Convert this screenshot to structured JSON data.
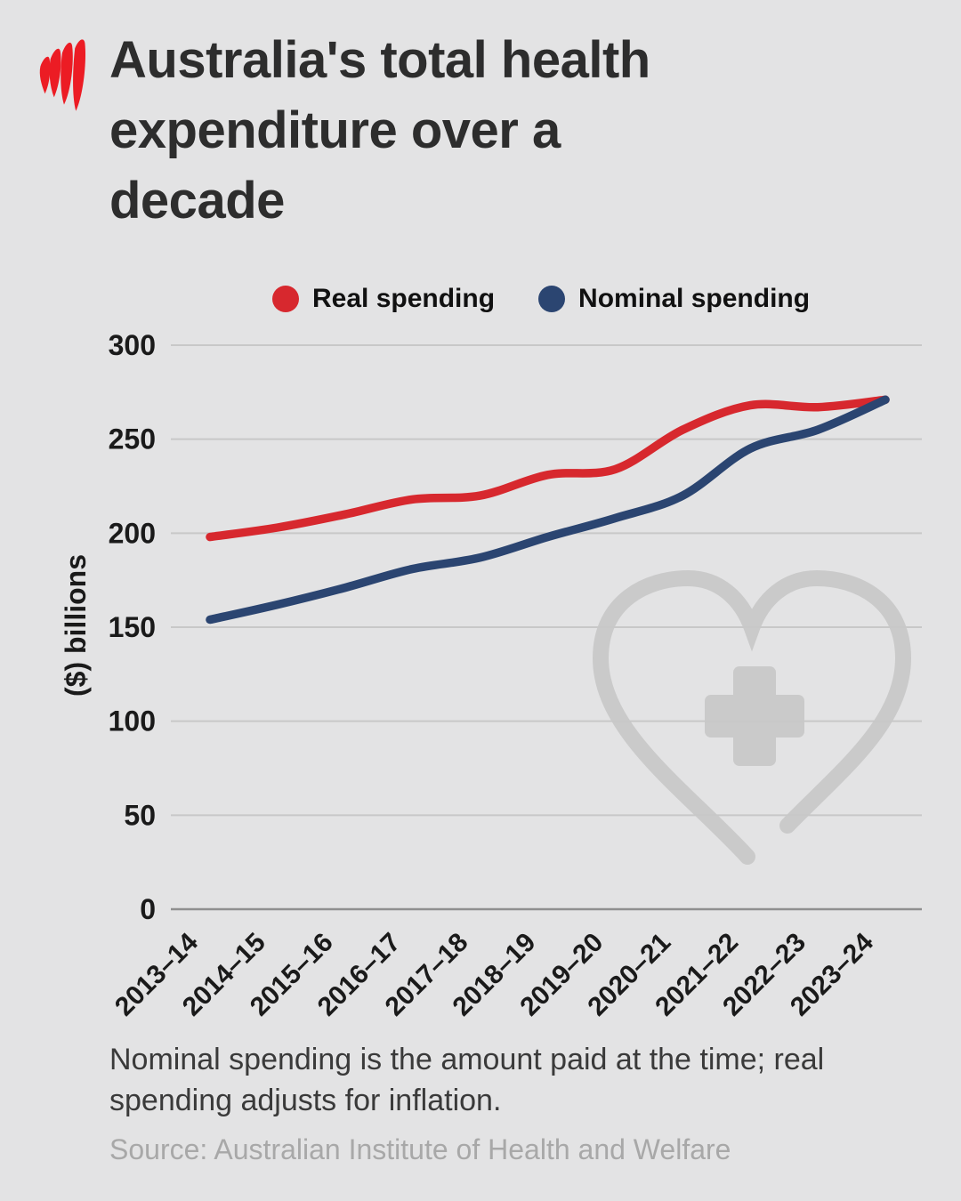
{
  "brand": {
    "logo_icon": "sbs-logo",
    "logo_color": "#ec1c24"
  },
  "title_lines": [
    "Australia's total health",
    "expenditure over a",
    "decade"
  ],
  "note": "Nominal spending is the amount paid at the time; real spending adjusts for inflation.",
  "source": "Source: Australian Institute of Health and Welfare",
  "colors": {
    "background": "#e3e3e4",
    "gridline": "#c8c8c8",
    "axis_line": "#8f8f8f",
    "tick_text": "#1a1a1a",
    "title_text": "#2d2d2d",
    "note_text": "#3a3a3a",
    "source_text": "#a8a8a8",
    "watermark": "#cacaca"
  },
  "watermark_icon": "heart-plus",
  "chart_data": {
    "type": "line",
    "title": "Australia's total health expenditure over a decade",
    "xlabel": "",
    "ylabel": "($) billions",
    "ylim": [
      0,
      300
    ],
    "y_ticks": [
      0,
      50,
      100,
      150,
      200,
      250,
      300
    ],
    "grid": true,
    "legend_position": "top",
    "categories": [
      "2013–14",
      "2014–15",
      "2015–16",
      "2016–17",
      "2017–18",
      "2018–19",
      "2019–20",
      "2020–21",
      "2021–22",
      "2022–23",
      "2023–24"
    ],
    "series": [
      {
        "name": "Real spending",
        "color": "#d7282e",
        "values": [
          198,
          203,
          210,
          218,
          220,
          231,
          234,
          255,
          268,
          267,
          271
        ]
      },
      {
        "name": "Nominal spending",
        "color": "#2b4571",
        "values": [
          154,
          162,
          171,
          181,
          187,
          198,
          208,
          220,
          245,
          255,
          271
        ]
      }
    ]
  }
}
